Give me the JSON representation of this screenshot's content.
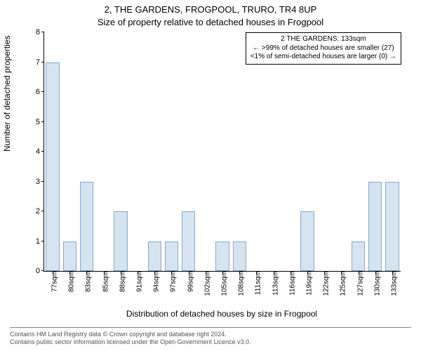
{
  "chart": {
    "type": "bar",
    "title_main": "2, THE GARDENS, FROGPOOL, TRURO, TR4 8UP",
    "title_sub": "Size of property relative to detached houses in Frogpool",
    "ylabel": "Number of detached properties",
    "xlabel": "Distribution of detached houses by size in Frogpool",
    "ylim": [
      0,
      8
    ],
    "ytick_step": 1,
    "categories": [
      "77sqm",
      "80sqm",
      "83sqm",
      "85sqm",
      "88sqm",
      "91sqm",
      "94sqm",
      "97sqm",
      "99sqm",
      "102sqm",
      "105sqm",
      "108sqm",
      "111sqm",
      "113sqm",
      "116sqm",
      "119sqm",
      "122sqm",
      "125sqm",
      "127sqm",
      "130sqm",
      "133sqm"
    ],
    "values": [
      7,
      1,
      3,
      0,
      2,
      0,
      1,
      1,
      2,
      0,
      1,
      1,
      0,
      0,
      0,
      2,
      0,
      0,
      1,
      3,
      3
    ],
    "bar_fill": "#d6e4f2",
    "bar_stroke": "#8aa8c7",
    "axis_color": "#000000",
    "background_color": "#ffffff",
    "title_fontsize": 13,
    "label_fontsize": 12,
    "tick_fontsize": 11,
    "xtick_fontsize": 10,
    "bar_width": 0.8,
    "annotation": {
      "line1": "2 THE GARDENS: 133sqm",
      "line2": "← >99% of detached houses are smaller (27)",
      "line3": "<1% of semi-detached houses are larger (0) →"
    }
  },
  "footer": {
    "line1": "Contains HM Land Registry data © Crown copyright and database right 2024.",
    "line2": "Contains public sector information licensed under the Open Government Licence v3.0."
  }
}
